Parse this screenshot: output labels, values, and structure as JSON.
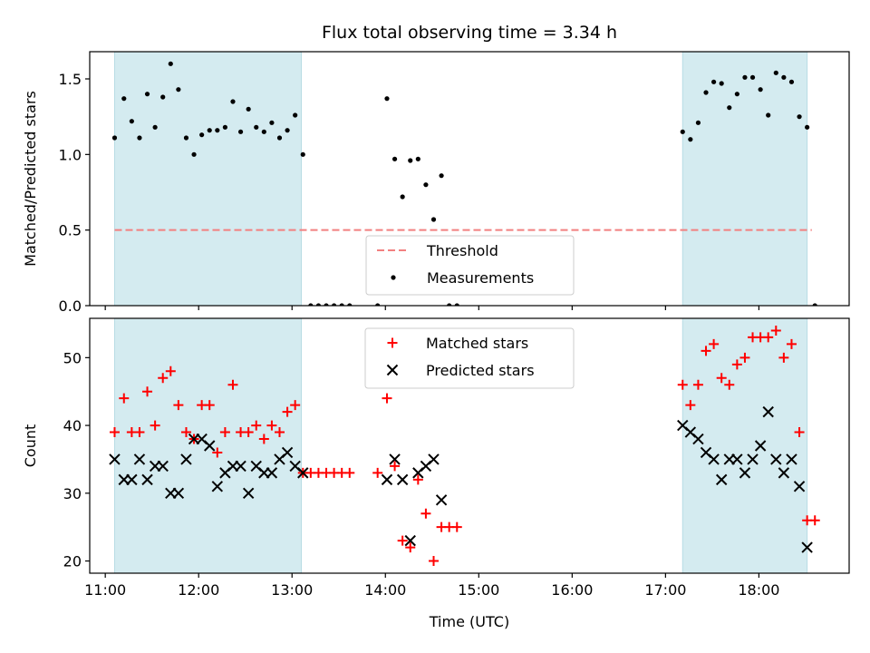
{
  "chart_data": [
    {
      "type": "scatter",
      "title": "Flux total observing time = 3.34 h",
      "ylabel": "Matched/Predicted stars",
      "xlabel": "",
      "xlim": [
        "10:50",
        "18:58"
      ],
      "ylim": [
        0,
        1.68
      ],
      "xticks": [
        "11:00",
        "12:00",
        "13:00",
        "14:00",
        "15:00",
        "16:00",
        "17:00",
        "18:00"
      ],
      "yticks": [
        0.0,
        0.5,
        1.0,
        1.5
      ],
      "ytick_labels": [
        "0.0",
        "0.5",
        "1.0",
        "1.5"
      ],
      "shaded_spans": [
        [
          "11:06",
          "13:06"
        ],
        [
          "17:11",
          "18:31"
        ]
      ],
      "shade_color": "#d4ebf0",
      "legend_position": "lower-center",
      "threshold": {
        "name": "Threshold",
        "value": 0.5,
        "x_range": [
          "11:06",
          "18:34"
        ],
        "color": "#f28080"
      },
      "series": [
        {
          "name": "Measurements",
          "color": "#000000",
          "marker": "dot",
          "points": [
            [
              "11:06",
              1.11
            ],
            [
              "11:12",
              1.37
            ],
            [
              "11:17",
              1.22
            ],
            [
              "11:22",
              1.11
            ],
            [
              "11:27",
              1.4
            ],
            [
              "11:32",
              1.18
            ],
            [
              "11:37",
              1.38
            ],
            [
              "11:42",
              1.6
            ],
            [
              "11:47",
              1.43
            ],
            [
              "11:52",
              1.11
            ],
            [
              "11:57",
              1.0
            ],
            [
              "12:02",
              1.13
            ],
            [
              "12:07",
              1.16
            ],
            [
              "12:12",
              1.16
            ],
            [
              "12:17",
              1.18
            ],
            [
              "12:22",
              1.35
            ],
            [
              "12:27",
              1.15
            ],
            [
              "12:32",
              1.3
            ],
            [
              "12:37",
              1.18
            ],
            [
              "12:42",
              1.15
            ],
            [
              "12:47",
              1.21
            ],
            [
              "12:52",
              1.11
            ],
            [
              "12:57",
              1.16
            ],
            [
              "13:02",
              1.26
            ],
            [
              "13:07",
              1.0
            ],
            [
              "13:12",
              0.0
            ],
            [
              "13:17",
              0.0
            ],
            [
              "13:22",
              0.0
            ],
            [
              "13:27",
              0.0
            ],
            [
              "13:32",
              0.0
            ],
            [
              "13:37",
              0.0
            ],
            [
              "13:55",
              0.0
            ],
            [
              "14:01",
              1.37
            ],
            [
              "14:06",
              0.97
            ],
            [
              "14:11",
              0.72
            ],
            [
              "14:16",
              0.96
            ],
            [
              "14:21",
              0.97
            ],
            [
              "14:26",
              0.8
            ],
            [
              "14:31",
              0.57
            ],
            [
              "14:36",
              0.86
            ],
            [
              "14:41",
              0.0
            ],
            [
              "14:46",
              0.0
            ],
            [
              "17:11",
              1.15
            ],
            [
              "17:16",
              1.1
            ],
            [
              "17:21",
              1.21
            ],
            [
              "17:26",
              1.41
            ],
            [
              "17:31",
              1.48
            ],
            [
              "17:36",
              1.47
            ],
            [
              "17:41",
              1.31
            ],
            [
              "17:46",
              1.4
            ],
            [
              "17:51",
              1.51
            ],
            [
              "17:56",
              1.51
            ],
            [
              "18:01",
              1.43
            ],
            [
              "18:06",
              1.26
            ],
            [
              "18:11",
              1.54
            ],
            [
              "18:16",
              1.51
            ],
            [
              "18:21",
              1.48
            ],
            [
              "18:26",
              1.25
            ],
            [
              "18:31",
              1.18
            ],
            [
              "18:36",
              0.0
            ]
          ]
        }
      ]
    },
    {
      "type": "scatter",
      "title": "",
      "ylabel": "Count",
      "xlabel": "Time (UTC)",
      "xlim": [
        "10:50",
        "18:58"
      ],
      "ylim": [
        18.2,
        55.8
      ],
      "xticks": [
        "11:00",
        "12:00",
        "13:00",
        "14:00",
        "15:00",
        "16:00",
        "17:00",
        "18:00"
      ],
      "yticks": [
        20,
        30,
        40,
        50
      ],
      "ytick_labels": [
        "20",
        "30",
        "40",
        "50"
      ],
      "shaded_spans": [
        [
          "11:06",
          "13:06"
        ],
        [
          "17:11",
          "18:31"
        ]
      ],
      "shade_color": "#d4ebf0",
      "legend_position": "upper-center",
      "series": [
        {
          "name": "Matched stars",
          "color": "#ff0000",
          "marker": "plus",
          "points": [
            [
              "11:06",
              39
            ],
            [
              "11:12",
              44
            ],
            [
              "11:17",
              39
            ],
            [
              "11:22",
              39
            ],
            [
              "11:27",
              45
            ],
            [
              "11:32",
              40
            ],
            [
              "11:37",
              47
            ],
            [
              "11:42",
              48
            ],
            [
              "11:47",
              43
            ],
            [
              "11:52",
              39
            ],
            [
              "11:57",
              38
            ],
            [
              "12:02",
              43
            ],
            [
              "12:07",
              43
            ],
            [
              "12:12",
              36
            ],
            [
              "12:17",
              39
            ],
            [
              "12:22",
              46
            ],
            [
              "12:27",
              39
            ],
            [
              "12:32",
              39
            ],
            [
              "12:37",
              40
            ],
            [
              "12:42",
              38
            ],
            [
              "12:47",
              40
            ],
            [
              "12:52",
              39
            ],
            [
              "12:57",
              42
            ],
            [
              "13:02",
              43
            ],
            [
              "13:07",
              33
            ],
            [
              "13:12",
              33
            ],
            [
              "13:17",
              33
            ],
            [
              "13:22",
              33
            ],
            [
              "13:27",
              33
            ],
            [
              "13:32",
              33
            ],
            [
              "13:37",
              33
            ],
            [
              "13:55",
              33
            ],
            [
              "14:01",
              44
            ],
            [
              "14:06",
              34
            ],
            [
              "14:11",
              23
            ],
            [
              "14:16",
              22
            ],
            [
              "14:21",
              32
            ],
            [
              "14:26",
              27
            ],
            [
              "14:31",
              20
            ],
            [
              "14:36",
              25
            ],
            [
              "14:41",
              25
            ],
            [
              "14:46",
              25
            ],
            [
              "17:11",
              46
            ],
            [
              "17:16",
              43
            ],
            [
              "17:21",
              46
            ],
            [
              "17:26",
              51
            ],
            [
              "17:31",
              52
            ],
            [
              "17:36",
              47
            ],
            [
              "17:41",
              46
            ],
            [
              "17:46",
              49
            ],
            [
              "17:51",
              50
            ],
            [
              "17:56",
              53
            ],
            [
              "18:01",
              53
            ],
            [
              "18:06",
              53
            ],
            [
              "18:11",
              54
            ],
            [
              "18:16",
              50
            ],
            [
              "18:21",
              52
            ],
            [
              "18:26",
              39
            ],
            [
              "18:31",
              26
            ],
            [
              "18:36",
              26
            ]
          ]
        },
        {
          "name": "Predicted stars",
          "color": "#000000",
          "marker": "x",
          "points": [
            [
              "11:06",
              35
            ],
            [
              "11:12",
              32
            ],
            [
              "11:17",
              32
            ],
            [
              "11:22",
              35
            ],
            [
              "11:27",
              32
            ],
            [
              "11:32",
              34
            ],
            [
              "11:37",
              34
            ],
            [
              "11:42",
              30
            ],
            [
              "11:47",
              30
            ],
            [
              "11:52",
              35
            ],
            [
              "11:57",
              38
            ],
            [
              "12:02",
              38
            ],
            [
              "12:07",
              37
            ],
            [
              "12:12",
              31
            ],
            [
              "12:17",
              33
            ],
            [
              "12:22",
              34
            ],
            [
              "12:27",
              34
            ],
            [
              "12:32",
              30
            ],
            [
              "12:37",
              34
            ],
            [
              "12:42",
              33
            ],
            [
              "12:47",
              33
            ],
            [
              "12:52",
              35
            ],
            [
              "12:57",
              36
            ],
            [
              "13:02",
              34
            ],
            [
              "13:07",
              33
            ],
            [
              "14:01",
              32
            ],
            [
              "14:06",
              35
            ],
            [
              "14:11",
              32
            ],
            [
              "14:16",
              23
            ],
            [
              "14:21",
              33
            ],
            [
              "14:26",
              34
            ],
            [
              "14:31",
              35
            ],
            [
              "14:36",
              29
            ],
            [
              "17:11",
              40
            ],
            [
              "17:16",
              39
            ],
            [
              "17:21",
              38
            ],
            [
              "17:26",
              36
            ],
            [
              "17:31",
              35
            ],
            [
              "17:36",
              32
            ],
            [
              "17:41",
              35
            ],
            [
              "17:46",
              35
            ],
            [
              "17:51",
              33
            ],
            [
              "17:56",
              35
            ],
            [
              "18:01",
              37
            ],
            [
              "18:06",
              42
            ],
            [
              "18:11",
              35
            ],
            [
              "18:16",
              33
            ],
            [
              "18:21",
              35
            ],
            [
              "18:26",
              31
            ],
            [
              "18:31",
              22
            ]
          ]
        }
      ]
    }
  ]
}
